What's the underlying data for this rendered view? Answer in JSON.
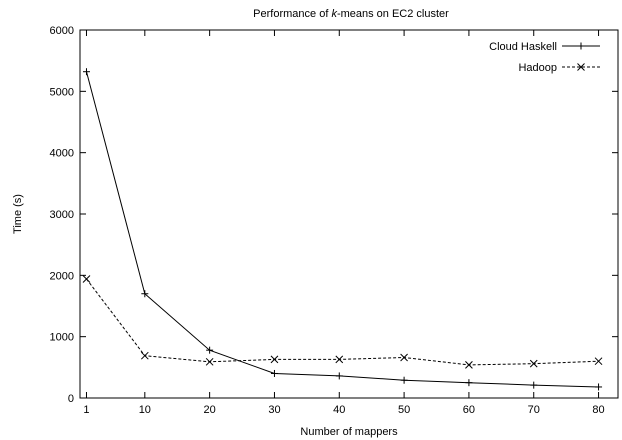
{
  "chart_data": {
    "type": "line",
    "title": {
      "prefix": "Performance of ",
      "emph": "k",
      "suffix": "-means on EC2 cluster"
    },
    "xlabel": "Number of mappers",
    "ylabel": "Time (s)",
    "xlim": [
      0,
      83
    ],
    "ylim": [
      0,
      6000
    ],
    "xticks": [
      1,
      10,
      20,
      30,
      40,
      50,
      60,
      70,
      80
    ],
    "yticks": [
      0,
      1000,
      2000,
      3000,
      4000,
      5000,
      6000
    ],
    "grid": false,
    "legend_position": "top-right",
    "series": [
      {
        "name": "Cloud Haskell",
        "line": "solid",
        "marker": "plus",
        "x": [
          1,
          10,
          20,
          30,
          40,
          50,
          60,
          70,
          80
        ],
        "y": [
          5320,
          1700,
          780,
          400,
          360,
          290,
          250,
          210,
          180
        ]
      },
      {
        "name": "Hadoop",
        "line": "dashed",
        "marker": "cross",
        "x": [
          1,
          10,
          20,
          30,
          40,
          50,
          60,
          70,
          80
        ],
        "y": [
          1940,
          690,
          590,
          630,
          630,
          660,
          540,
          560,
          600
        ]
      }
    ]
  }
}
